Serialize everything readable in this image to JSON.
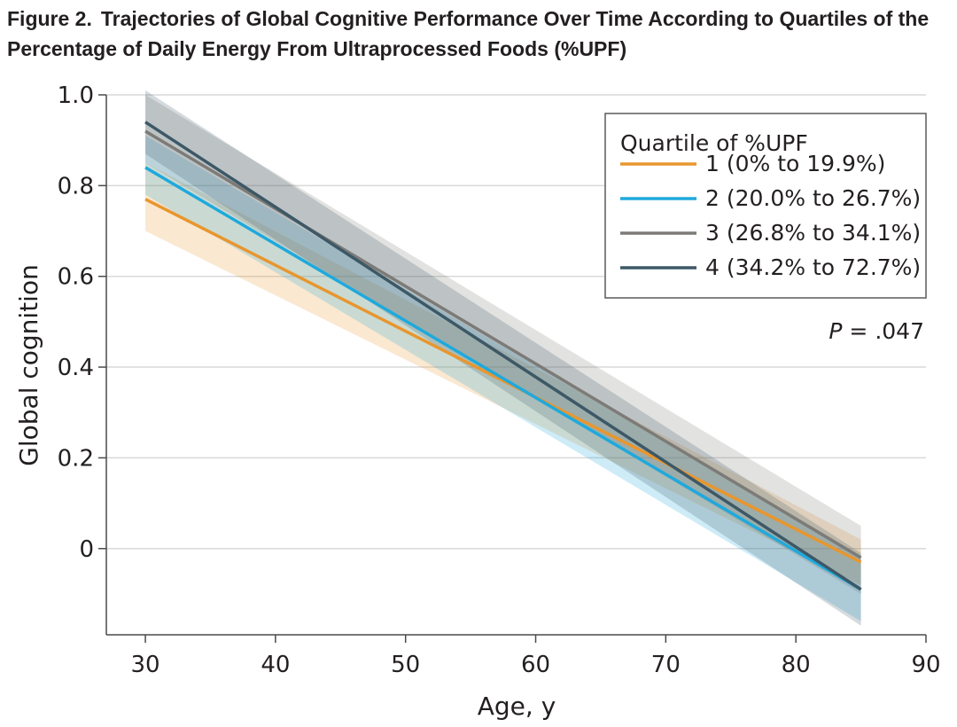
{
  "figure": {
    "label": "Figure 2.",
    "title": "Trajectories of Global Cognitive Performance Over Time According to Quartiles of the Percentage of Daily Energy From Ultraprocessed Foods (%UPF)"
  },
  "chart_data": {
    "type": "line",
    "xlabel": "Age, y",
    "ylabel": "Global cognition",
    "xlim": [
      27,
      90
    ],
    "ylim": [
      -0.19,
      1.0
    ],
    "x_ticks": [
      30,
      40,
      50,
      60,
      70,
      80,
      90
    ],
    "y_ticks": [
      0,
      0.2,
      0.4,
      0.6,
      0.8,
      1.0
    ],
    "y_tick_labels": [
      "0",
      "0.2",
      "0.4",
      "0.6",
      "0.8",
      "1.0"
    ],
    "grid": "horizontal",
    "legend": {
      "title": "Quartile of %UPF",
      "position": "top-right"
    },
    "annotation": {
      "italic": "P",
      "text": " = .047"
    },
    "series": [
      {
        "name": "1 (0% to 19.9%)",
        "color": "#e8962e",
        "x": [
          30,
          85
        ],
        "y": [
          0.77,
          -0.03
        ],
        "ci_lower": [
          0.7,
          -0.08
        ],
        "ci_upper": [
          0.85,
          0.02
        ]
      },
      {
        "name": "2 (20.0% to 26.7%)",
        "color": "#1fa9dc",
        "x": [
          30,
          85
        ],
        "y": [
          0.84,
          -0.09
        ],
        "ci_lower": [
          0.78,
          -0.16
        ],
        "ci_upper": [
          0.91,
          -0.02
        ]
      },
      {
        "name": "3 (26.8% to 34.1%)",
        "color": "#7d7b77",
        "x": [
          30,
          85
        ],
        "y": [
          0.92,
          -0.02
        ],
        "ci_lower": [
          0.85,
          -0.1
        ],
        "ci_upper": [
          1.0,
          0.05
        ]
      },
      {
        "name": "4 (34.2% to 72.7%)",
        "color": "#3d5866",
        "x": [
          30,
          85
        ],
        "y": [
          0.94,
          -0.09
        ],
        "ci_lower": [
          0.87,
          -0.17
        ],
        "ci_upper": [
          1.01,
          -0.01
        ]
      }
    ]
  }
}
